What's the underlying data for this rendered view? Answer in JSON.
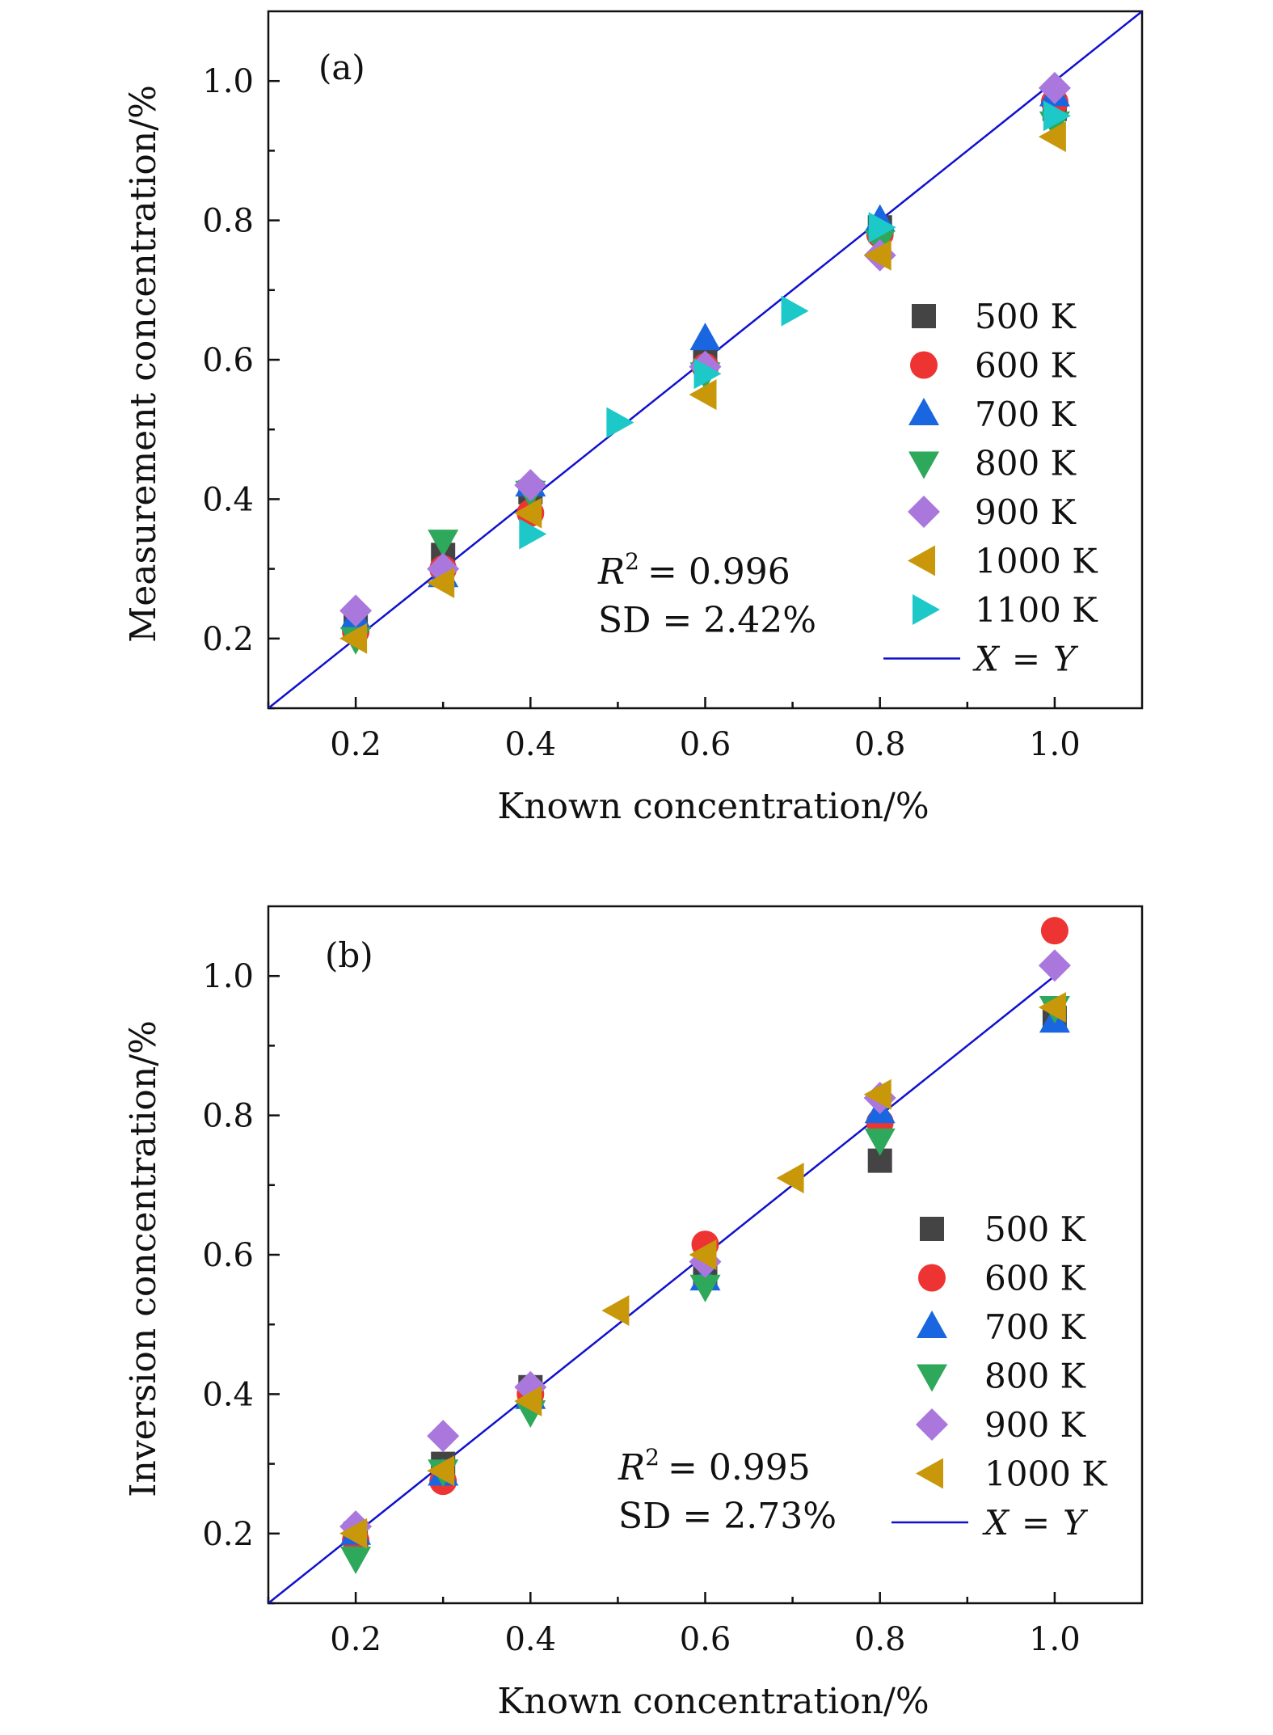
{
  "chart_data": [
    {
      "type": "scatter",
      "panel_label": "(a)",
      "xlabel": "Known concentration/%",
      "ylabel": "Measurement concentration/%",
      "xlim": [
        0.1,
        1.1
      ],
      "ylim": [
        0.1,
        1.1
      ],
      "xticks": [
        "0.2",
        "0.4",
        "0.6",
        "0.8",
        "1.0"
      ],
      "yticks": [
        "0.2",
        "0.4",
        "0.6",
        "0.8",
        "1.0"
      ],
      "annotation": {
        "r2_symbol": "R",
        "r2_exp": "2",
        "r2_value": "= 0.996",
        "sd": "SD = 2.42%"
      },
      "legend_position": "right",
      "fit_line": {
        "label_x": "X",
        "label_eq": "=",
        "label_y": "Y",
        "color": "#1010d0",
        "from": [
          0.1,
          0.1
        ],
        "to": [
          1.1,
          1.1
        ]
      },
      "series": [
        {
          "name": "500 K",
          "marker": "square",
          "color": "#444444",
          "points": [
            [
              0.2,
              0.22
            ],
            [
              0.3,
              0.32
            ],
            [
              0.4,
              0.41
            ],
            [
              0.6,
              0.6
            ],
            [
              0.8,
              0.79
            ],
            [
              1.0,
              0.96
            ]
          ]
        },
        {
          "name": "600 K",
          "marker": "circle",
          "color": "#ee3333",
          "points": [
            [
              0.2,
              0.21
            ],
            [
              0.3,
              0.3
            ],
            [
              0.4,
              0.38
            ],
            [
              0.6,
              0.59
            ],
            [
              0.8,
              0.78
            ],
            [
              1.0,
              0.97
            ]
          ]
        },
        {
          "name": "700 K",
          "marker": "triangle-up",
          "color": "#1a66e0",
          "points": [
            [
              0.2,
              0.23
            ],
            [
              0.3,
              0.29
            ],
            [
              0.4,
              0.42
            ],
            [
              0.6,
              0.63
            ],
            [
              0.8,
              0.8
            ],
            [
              1.0,
              0.98
            ]
          ]
        },
        {
          "name": "800 K",
          "marker": "triangle-down",
          "color": "#2ea85a",
          "points": [
            [
              0.2,
              0.2
            ],
            [
              0.3,
              0.34
            ],
            [
              0.4,
              0.41
            ],
            [
              0.6,
              0.58
            ],
            [
              0.8,
              0.77
            ],
            [
              1.0,
              0.94
            ]
          ]
        },
        {
          "name": "900 K",
          "marker": "diamond",
          "color": "#aa77dd",
          "points": [
            [
              0.2,
              0.24
            ],
            [
              0.3,
              0.3
            ],
            [
              0.4,
              0.42
            ],
            [
              0.6,
              0.59
            ],
            [
              0.8,
              0.75
            ],
            [
              1.0,
              0.99
            ]
          ]
        },
        {
          "name": "1000 K",
          "marker": "triangle-left",
          "color": "#c8980a",
          "points": [
            [
              0.2,
              0.2
            ],
            [
              0.3,
              0.28
            ],
            [
              0.4,
              0.38
            ],
            [
              0.6,
              0.55
            ],
            [
              0.8,
              0.75
            ],
            [
              1.0,
              0.92
            ]
          ]
        },
        {
          "name": "1100 K",
          "marker": "triangle-right",
          "color": "#1cc8c8",
          "points": [
            [
              0.4,
              0.35
            ],
            [
              0.5,
              0.51
            ],
            [
              0.6,
              0.58
            ],
            [
              0.7,
              0.67
            ],
            [
              0.8,
              0.79
            ],
            [
              1.0,
              0.95
            ]
          ]
        }
      ]
    },
    {
      "type": "scatter",
      "panel_label": "(b)",
      "xlabel": "Known concentration/%",
      "ylabel": "Inversion concentration/%",
      "xlim": [
        0.1,
        1.1
      ],
      "ylim": [
        0.1,
        1.1
      ],
      "xticks": [
        "0.2",
        "0.4",
        "0.6",
        "0.8",
        "1.0"
      ],
      "yticks": [
        "0.2",
        "0.4",
        "0.6",
        "0.8",
        "1.0"
      ],
      "annotation": {
        "r2_symbol": "R",
        "r2_exp": "2",
        "r2_value": "= 0.995",
        "sd": "SD = 2.73%"
      },
      "legend_position": "right",
      "fit_line": {
        "label_x": "X",
        "label_eq": "=",
        "label_y": "Y",
        "color": "#1010d0",
        "from": [
          0.1,
          0.1
        ],
        "to": [
          1.0,
          1.0
        ]
      },
      "series": [
        {
          "name": "500 K",
          "marker": "square",
          "color": "#444444",
          "points": [
            [
              0.2,
              0.2
            ],
            [
              0.3,
              0.3
            ],
            [
              0.4,
              0.41
            ],
            [
              0.6,
              0.57
            ],
            [
              0.8,
              0.735
            ],
            [
              1.0,
              0.94
            ]
          ]
        },
        {
          "name": "600 K",
          "marker": "circle",
          "color": "#ee3333",
          "points": [
            [
              0.2,
              0.19
            ],
            [
              0.3,
              0.275
            ],
            [
              0.4,
              0.4
            ],
            [
              0.6,
              0.615
            ],
            [
              0.8,
              0.79
            ],
            [
              1.0,
              1.065
            ]
          ]
        },
        {
          "name": "700 K",
          "marker": "triangle-up",
          "color": "#1a66e0",
          "points": [
            [
              0.2,
              0.2
            ],
            [
              0.3,
              0.285
            ],
            [
              0.4,
              0.395
            ],
            [
              0.6,
              0.565
            ],
            [
              0.8,
              0.805
            ],
            [
              1.0,
              0.935
            ]
          ]
        },
        {
          "name": "800 K",
          "marker": "triangle-down",
          "color": "#2ea85a",
          "points": [
            [
              0.2,
              0.165
            ],
            [
              0.3,
              0.29
            ],
            [
              0.4,
              0.375
            ],
            [
              0.6,
              0.555
            ],
            [
              0.8,
              0.765
            ],
            [
              1.0,
              0.955
            ]
          ]
        },
        {
          "name": "900 K",
          "marker": "diamond",
          "color": "#aa77dd",
          "points": [
            [
              0.2,
              0.21
            ],
            [
              0.3,
              0.34
            ],
            [
              0.4,
              0.41
            ],
            [
              0.6,
              0.59
            ],
            [
              0.8,
              0.825
            ],
            [
              1.0,
              1.015
            ]
          ]
        },
        {
          "name": "1000 K",
          "marker": "triangle-left",
          "color": "#c8980a",
          "points": [
            [
              0.2,
              0.2
            ],
            [
              0.3,
              0.29
            ],
            [
              0.4,
              0.39
            ],
            [
              0.5,
              0.52
            ],
            [
              0.6,
              0.6
            ],
            [
              0.7,
              0.71
            ],
            [
              0.8,
              0.83
            ],
            [
              1.0,
              0.955
            ]
          ]
        }
      ]
    }
  ]
}
